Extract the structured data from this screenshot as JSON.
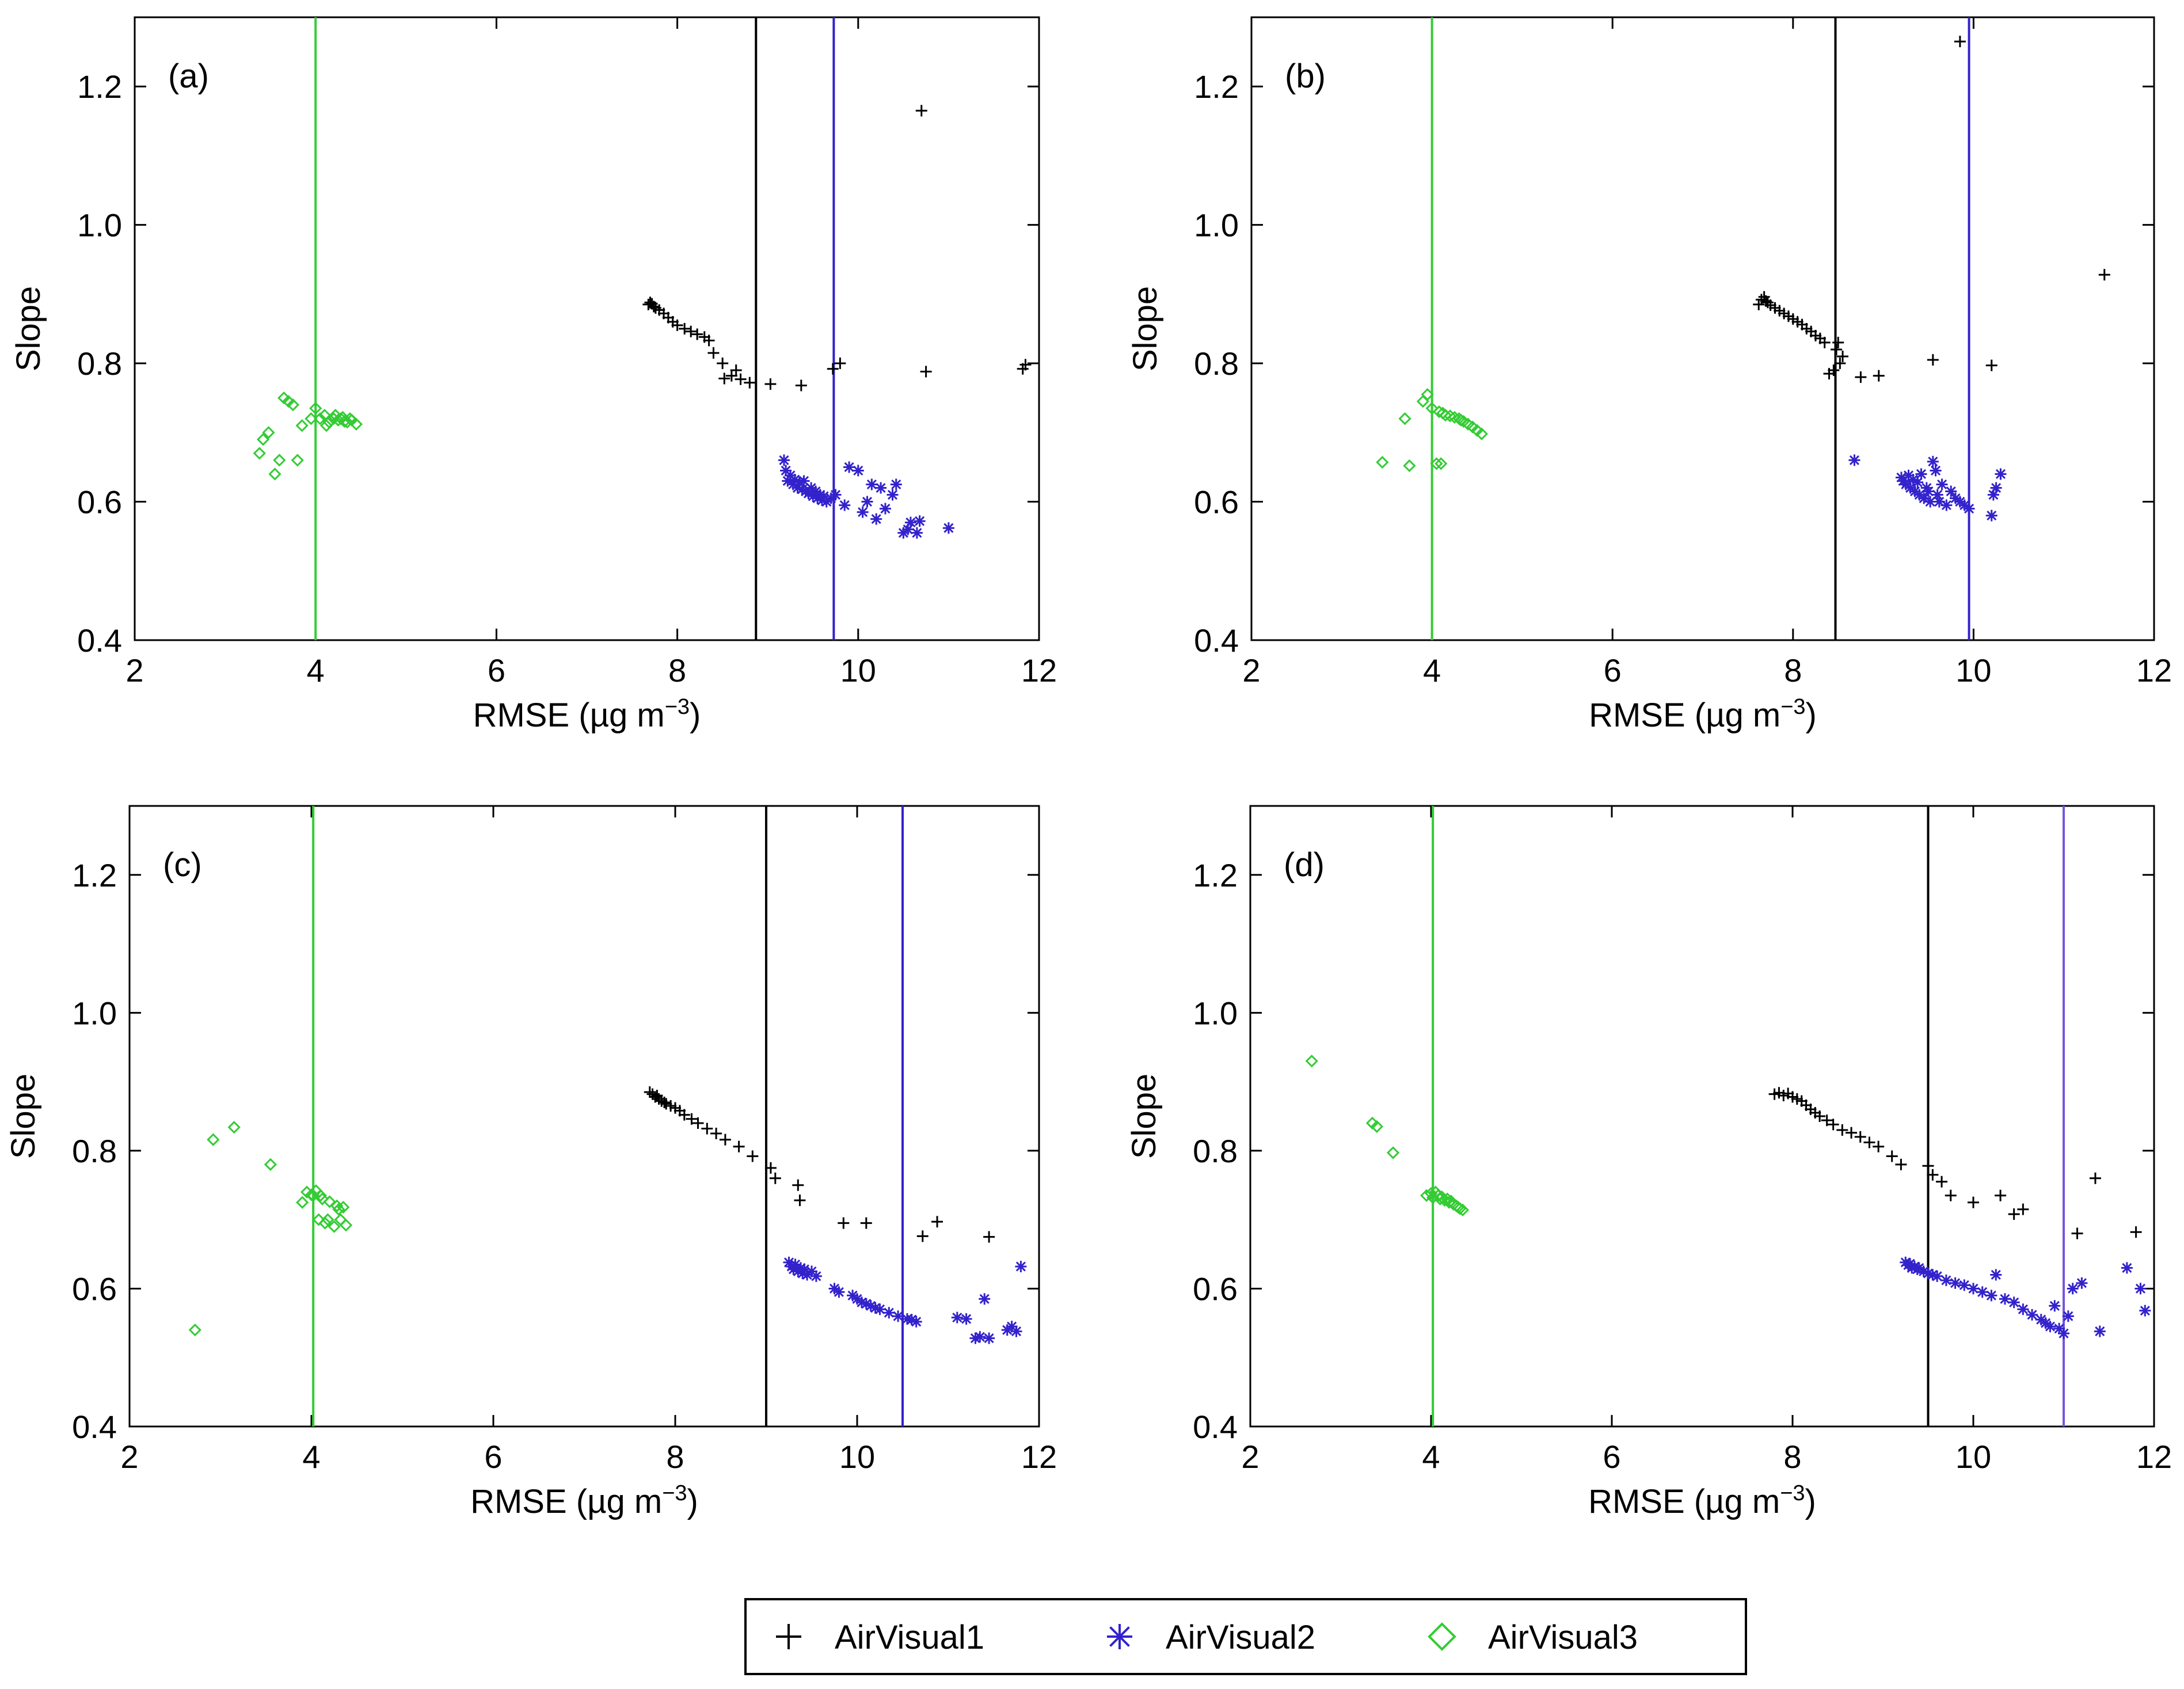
{
  "chart_data": [
    {
      "type": "scatter",
      "panel_label": "(a)",
      "xlabel_prefix": "RMSE (µg m",
      "xlabel_exp": "−3",
      "xlabel_suffix": ")",
      "ylabel": "Slope",
      "xlim": [
        2,
        12
      ],
      "ylim": [
        0.4,
        1.3
      ],
      "xticks": [
        2,
        4,
        6,
        8,
        10,
        12
      ],
      "xtick_labels": [
        "2",
        "4",
        "6",
        "8",
        "10",
        "12"
      ],
      "yticks": [
        0.4,
        0.6,
        0.8,
        1.0,
        1.2
      ],
      "ytick_labels": [
        "0.4",
        "0.6",
        "0.8",
        "1.0",
        "1.2"
      ],
      "vlines": [
        {
          "series": "AirVisual3",
          "x": 4.0,
          "color": "#33cc33"
        },
        {
          "series": "AirVisual1",
          "x": 8.87,
          "color": "#000000"
        },
        {
          "series": "AirVisual2",
          "x": 9.73,
          "color": "#3322cc"
        }
      ],
      "series": [
        {
          "name": "AirVisual1",
          "marker": "plus",
          "color": "#000000",
          "x": [
            7.68,
            7.7,
            7.72,
            7.74,
            7.76,
            7.8,
            7.85,
            7.9,
            7.95,
            8.0,
            8.08,
            8.15,
            8.22,
            8.3,
            8.35,
            8.4,
            8.5,
            8.52,
            8.6,
            8.65,
            8.7,
            8.8,
            9.03,
            9.37,
            9.72,
            9.8,
            10.7,
            10.75,
            11.82,
            11.85
          ],
          "y": [
            0.885,
            0.888,
            0.886,
            0.882,
            0.88,
            0.877,
            0.872,
            0.866,
            0.86,
            0.855,
            0.85,
            0.846,
            0.842,
            0.838,
            0.833,
            0.815,
            0.8,
            0.778,
            0.782,
            0.79,
            0.777,
            0.772,
            0.77,
            0.768,
            0.792,
            0.8,
            1.165,
            0.788,
            0.792,
            0.798
          ]
        },
        {
          "name": "AirVisual2",
          "marker": "asterisk",
          "color": "#3322cc",
          "x": [
            9.18,
            9.2,
            9.22,
            9.25,
            9.28,
            9.3,
            9.33,
            9.35,
            9.38,
            9.4,
            9.42,
            9.45,
            9.48,
            9.5,
            9.53,
            9.55,
            9.58,
            9.6,
            9.62,
            9.65,
            9.7,
            9.75,
            9.85,
            9.9,
            10.0,
            10.05,
            10.1,
            10.15,
            10.2,
            10.25,
            10.3,
            10.38,
            10.42,
            10.5,
            10.55,
            10.58,
            10.65,
            10.68,
            11.0
          ],
          "y": [
            0.66,
            0.645,
            0.63,
            0.638,
            0.625,
            0.632,
            0.62,
            0.628,
            0.618,
            0.63,
            0.615,
            0.612,
            0.62,
            0.608,
            0.615,
            0.605,
            0.61,
            0.602,
            0.608,
            0.6,
            0.605,
            0.61,
            0.595,
            0.65,
            0.645,
            0.585,
            0.6,
            0.625,
            0.575,
            0.62,
            0.59,
            0.61,
            0.625,
            0.555,
            0.56,
            0.57,
            0.555,
            0.572,
            0.562
          ]
        },
        {
          "name": "AirVisual3",
          "marker": "diamond",
          "color": "#33cc33",
          "x": [
            3.38,
            3.42,
            3.48,
            3.55,
            3.6,
            3.65,
            3.7,
            3.75,
            3.8,
            3.85,
            3.95,
            4.0,
            4.05,
            4.1,
            4.12,
            4.15,
            4.2,
            4.22,
            4.25,
            4.28,
            4.3,
            4.32,
            4.35,
            4.38,
            4.4,
            4.45
          ],
          "y": [
            0.67,
            0.69,
            0.7,
            0.64,
            0.66,
            0.75,
            0.745,
            0.74,
            0.66,
            0.71,
            0.72,
            0.735,
            0.72,
            0.725,
            0.71,
            0.715,
            0.72,
            0.725,
            0.718,
            0.72,
            0.722,
            0.716,
            0.715,
            0.72,
            0.718,
            0.712
          ]
        }
      ]
    },
    {
      "type": "scatter",
      "panel_label": "(b)",
      "xlabel_prefix": "RMSE (µg m",
      "xlabel_exp": "−3",
      "xlabel_suffix": ")",
      "ylabel": "Slope",
      "xlim": [
        2,
        12
      ],
      "ylim": [
        0.4,
        1.3
      ],
      "xticks": [
        2,
        4,
        6,
        8,
        10,
        12
      ],
      "xtick_labels": [
        "2",
        "4",
        "6",
        "8",
        "10",
        "12"
      ],
      "yticks": [
        0.4,
        0.6,
        0.8,
        1.0,
        1.2
      ],
      "ytick_labels": [
        "0.4",
        "0.6",
        "0.8",
        "1.0",
        "1.2"
      ],
      "vlines": [
        {
          "series": "AirVisual3",
          "x": 4.0,
          "color": "#33cc33"
        },
        {
          "series": "AirVisual1",
          "x": 8.47,
          "color": "#000000"
        },
        {
          "series": "AirVisual2",
          "x": 9.95,
          "color": "#3322cc"
        }
      ],
      "series": [
        {
          "name": "AirVisual1",
          "marker": "plus",
          "color": "#000000",
          "x": [
            7.62,
            7.65,
            7.68,
            7.7,
            7.72,
            7.75,
            7.8,
            7.85,
            7.9,
            7.95,
            8.0,
            8.05,
            8.1,
            8.15,
            8.2,
            8.25,
            8.3,
            8.35,
            8.4,
            8.45,
            8.48,
            8.5,
            8.52,
            8.55,
            8.75,
            8.95,
            9.55,
            9.85,
            10.2,
            11.45
          ],
          "y": [
            0.885,
            0.892,
            0.896,
            0.89,
            0.888,
            0.884,
            0.88,
            0.876,
            0.872,
            0.868,
            0.864,
            0.86,
            0.856,
            0.85,
            0.846,
            0.84,
            0.836,
            0.83,
            0.785,
            0.79,
            0.82,
            0.83,
            0.8,
            0.81,
            0.78,
            0.782,
            0.805,
            1.265,
            0.797,
            0.928
          ]
        },
        {
          "name": "AirVisual2",
          "marker": "asterisk",
          "color": "#3322cc",
          "x": [
            8.68,
            9.2,
            9.22,
            9.25,
            9.28,
            9.3,
            9.33,
            9.35,
            9.38,
            9.4,
            9.42,
            9.45,
            9.48,
            9.5,
            9.52,
            9.55,
            9.58,
            9.6,
            9.62,
            9.65,
            9.7,
            9.75,
            9.8,
            9.85,
            9.9,
            9.95,
            10.2,
            10.22,
            10.25,
            10.3
          ],
          "y": [
            0.66,
            0.635,
            0.63,
            0.625,
            0.638,
            0.62,
            0.632,
            0.615,
            0.628,
            0.61,
            0.64,
            0.605,
            0.62,
            0.615,
            0.6,
            0.658,
            0.645,
            0.61,
            0.6,
            0.625,
            0.595,
            0.615,
            0.605,
            0.6,
            0.595,
            0.59,
            0.58,
            0.61,
            0.62,
            0.64
          ]
        },
        {
          "name": "AirVisual3",
          "marker": "diamond",
          "color": "#33cc33",
          "x": [
            3.45,
            3.7,
            3.75,
            3.9,
            3.95,
            4.0,
            4.05,
            4.08,
            4.1,
            4.12,
            4.15,
            4.2,
            4.25,
            4.3,
            4.32,
            4.35,
            4.4,
            4.45,
            4.5,
            4.55
          ],
          "y": [
            0.657,
            0.72,
            0.652,
            0.745,
            0.755,
            0.735,
            0.655,
            0.73,
            0.655,
            0.728,
            0.725,
            0.724,
            0.722,
            0.72,
            0.718,
            0.716,
            0.712,
            0.708,
            0.703,
            0.698
          ]
        }
      ]
    },
    {
      "type": "scatter",
      "panel_label": "(c)",
      "xlabel_prefix": "RMSE (µg m",
      "xlabel_exp": "−3",
      "xlabel_suffix": ")",
      "ylabel": "Slope",
      "xlim": [
        2,
        12
      ],
      "ylim": [
        0.4,
        1.3
      ],
      "xticks": [
        2,
        4,
        6,
        8,
        10,
        12
      ],
      "xtick_labels": [
        "2",
        "4",
        "6",
        "8",
        "10",
        "12"
      ],
      "yticks": [
        0.4,
        0.6,
        0.8,
        1.0,
        1.2
      ],
      "ytick_labels": [
        "0.4",
        "0.6",
        "0.8",
        "1.0",
        "1.2"
      ],
      "vlines": [
        {
          "series": "AirVisual3",
          "x": 4.02,
          "color": "#33cc33"
        },
        {
          "series": "AirVisual1",
          "x": 9.0,
          "color": "#000000"
        },
        {
          "series": "AirVisual2",
          "x": 10.5,
          "color": "#3322cc"
        }
      ],
      "series": [
        {
          "name": "AirVisual1",
          "marker": "plus",
          "color": "#000000",
          "x": [
            7.72,
            7.75,
            7.78,
            7.8,
            7.82,
            7.85,
            7.88,
            7.9,
            7.95,
            8.0,
            8.05,
            8.1,
            8.18,
            8.25,
            8.35,
            8.45,
            8.55,
            8.7,
            8.85,
            9.05,
            9.1,
            9.35,
            9.37,
            9.85,
            10.1,
            10.72,
            10.88,
            11.45
          ],
          "y": [
            0.885,
            0.882,
            0.878,
            0.88,
            0.875,
            0.872,
            0.87,
            0.868,
            0.865,
            0.862,
            0.858,
            0.852,
            0.846,
            0.84,
            0.832,
            0.825,
            0.816,
            0.806,
            0.792,
            0.775,
            0.76,
            0.75,
            0.728,
            0.695,
            0.695,
            0.676,
            0.697,
            0.675
          ]
        },
        {
          "name": "AirVisual2",
          "marker": "asterisk",
          "color": "#3322cc",
          "x": [
            9.25,
            9.28,
            9.3,
            9.32,
            9.35,
            9.38,
            9.4,
            9.42,
            9.45,
            9.5,
            9.55,
            9.75,
            9.8,
            9.95,
            10.0,
            10.05,
            10.1,
            10.15,
            10.2,
            10.25,
            10.35,
            10.45,
            10.55,
            10.6,
            10.65,
            11.1,
            11.2,
            11.3,
            11.35,
            11.4,
            11.45,
            11.65,
            11.7,
            11.75,
            11.8
          ],
          "y": [
            0.638,
            0.632,
            0.628,
            0.635,
            0.625,
            0.63,
            0.622,
            0.628,
            0.62,
            0.625,
            0.618,
            0.6,
            0.595,
            0.59,
            0.585,
            0.58,
            0.578,
            0.575,
            0.572,
            0.57,
            0.565,
            0.56,
            0.556,
            0.555,
            0.552,
            0.558,
            0.556,
            0.528,
            0.53,
            0.585,
            0.528,
            0.54,
            0.545,
            0.538,
            0.632
          ]
        },
        {
          "name": "AirVisual3",
          "marker": "diamond",
          "color": "#33cc33",
          "x": [
            2.72,
            2.92,
            3.15,
            3.55,
            3.9,
            3.95,
            4.0,
            4.02,
            4.05,
            4.08,
            4.1,
            4.12,
            4.15,
            4.18,
            4.2,
            4.25,
            4.28,
            4.3,
            4.32,
            4.35,
            4.38
          ],
          "y": [
            0.54,
            0.816,
            0.834,
            0.78,
            0.725,
            0.74,
            0.736,
            0.735,
            0.742,
            0.7,
            0.735,
            0.73,
            0.695,
            0.7,
            0.726,
            0.69,
            0.72,
            0.715,
            0.7,
            0.718,
            0.692
          ]
        }
      ]
    },
    {
      "type": "scatter",
      "panel_label": "(d)",
      "xlabel_prefix": "RMSE (µg m",
      "xlabel_exp": "−3",
      "xlabel_suffix": ")",
      "ylabel": "Slope",
      "xlim": [
        2,
        12
      ],
      "ylim": [
        0.4,
        1.3
      ],
      "xticks": [
        2,
        4,
        6,
        8,
        10,
        12
      ],
      "xtick_labels": [
        "2",
        "4",
        "6",
        "8",
        "10",
        "12"
      ],
      "yticks": [
        0.4,
        0.6,
        0.8,
        1.0,
        1.2
      ],
      "ytick_labels": [
        "0.4",
        "0.6",
        "0.8",
        "1.0",
        "1.2"
      ],
      "vlines": [
        {
          "series": "AirVisual3",
          "x": 4.02,
          "color": "#33cc33"
        },
        {
          "series": "AirVisual1",
          "x": 9.5,
          "color": "#000000"
        },
        {
          "series": "AirVisual2",
          "x": 11.0,
          "color": "#7755dd"
        }
      ],
      "series": [
        {
          "name": "AirVisual1",
          "marker": "plus",
          "color": "#000000",
          "x": [
            7.8,
            7.85,
            7.9,
            7.95,
            8.0,
            8.05,
            8.1,
            8.15,
            8.2,
            8.25,
            8.3,
            8.38,
            8.45,
            8.55,
            8.65,
            8.75,
            8.85,
            8.95,
            9.1,
            9.2,
            9.5,
            9.55,
            9.65,
            9.75,
            10.0,
            10.3,
            10.45,
            10.55,
            11.15,
            11.35,
            11.8
          ],
          "y": [
            0.882,
            0.884,
            0.88,
            0.883,
            0.878,
            0.875,
            0.872,
            0.866,
            0.86,
            0.855,
            0.85,
            0.844,
            0.838,
            0.83,
            0.826,
            0.82,
            0.812,
            0.806,
            0.792,
            0.78,
            0.778,
            0.765,
            0.755,
            0.735,
            0.725,
            0.735,
            0.708,
            0.715,
            0.68,
            0.76,
            0.682
          ]
        },
        {
          "name": "AirVisual2",
          "marker": "asterisk",
          "color": "#3322cc",
          "x": [
            9.25,
            9.28,
            9.3,
            9.32,
            9.35,
            9.38,
            9.4,
            9.45,
            9.5,
            9.55,
            9.6,
            9.7,
            9.8,
            9.9,
            10.0,
            10.1,
            10.2,
            10.25,
            10.35,
            10.45,
            10.55,
            10.65,
            10.75,
            10.8,
            10.85,
            10.9,
            10.95,
            11.0,
            11.05,
            11.1,
            11.2,
            11.4,
            11.7,
            11.85,
            11.9
          ],
          "y": [
            0.638,
            0.634,
            0.636,
            0.63,
            0.632,
            0.628,
            0.63,
            0.625,
            0.622,
            0.62,
            0.618,
            0.612,
            0.608,
            0.605,
            0.6,
            0.595,
            0.59,
            0.62,
            0.585,
            0.58,
            0.57,
            0.562,
            0.555,
            0.55,
            0.545,
            0.575,
            0.542,
            0.535,
            0.56,
            0.6,
            0.608,
            0.538,
            0.63,
            0.6,
            0.568
          ]
        },
        {
          "name": "AirVisual3",
          "marker": "diamond",
          "color": "#33cc33",
          "x": [
            2.68,
            3.35,
            3.4,
            3.58,
            3.95,
            4.0,
            4.02,
            4.05,
            4.08,
            4.1,
            4.12,
            4.15,
            4.18,
            4.2,
            4.22,
            4.25,
            4.28,
            4.3,
            4.32,
            4.35
          ],
          "y": [
            0.93,
            0.84,
            0.835,
            0.797,
            0.735,
            0.738,
            0.732,
            0.74,
            0.735,
            0.73,
            0.733,
            0.728,
            0.73,
            0.725,
            0.727,
            0.722,
            0.72,
            0.718,
            0.716,
            0.714
          ]
        }
      ]
    }
  ],
  "legend": {
    "position": "bottom-center",
    "entries": [
      {
        "label": "AirVisual1",
        "marker": "plus",
        "color": "#000000"
      },
      {
        "label": "AirVisual2",
        "marker": "asterisk",
        "color": "#3322cc"
      },
      {
        "label": "AirVisual3",
        "marker": "diamond",
        "color": "#33cc33"
      }
    ]
  }
}
